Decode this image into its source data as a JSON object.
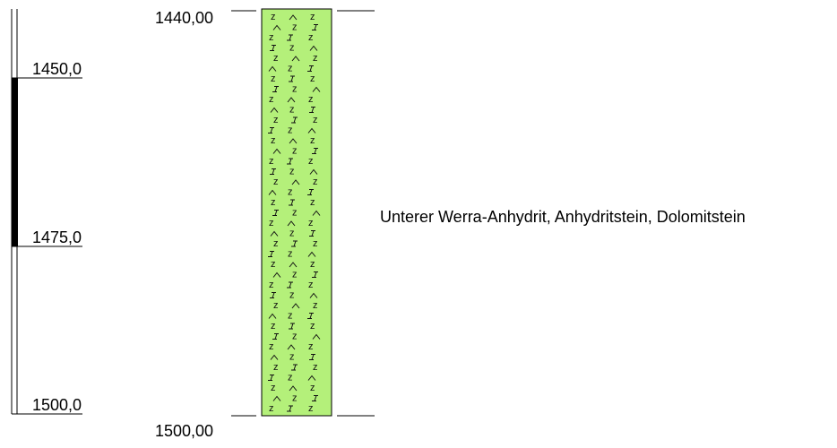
{
  "depth_scale": {
    "labels": [
      "1450,0",
      "1475,0",
      "1500,0"
    ],
    "depths": [
      1450,
      1475,
      1500
    ],
    "marked_interval": {
      "from": 1450,
      "to": 1475
    }
  },
  "column": {
    "top_label": "1440,00",
    "bottom_label": "1500,00",
    "top_depth": 1440,
    "bottom_depth": 1500,
    "fill_color": "#b4f07a",
    "pattern_symbols": [
      "Z",
      "Z",
      "I"
    ]
  },
  "layer": {
    "description": "Unterer Werra-Anhydrit, Anhydritstein, Dolomitstein"
  }
}
